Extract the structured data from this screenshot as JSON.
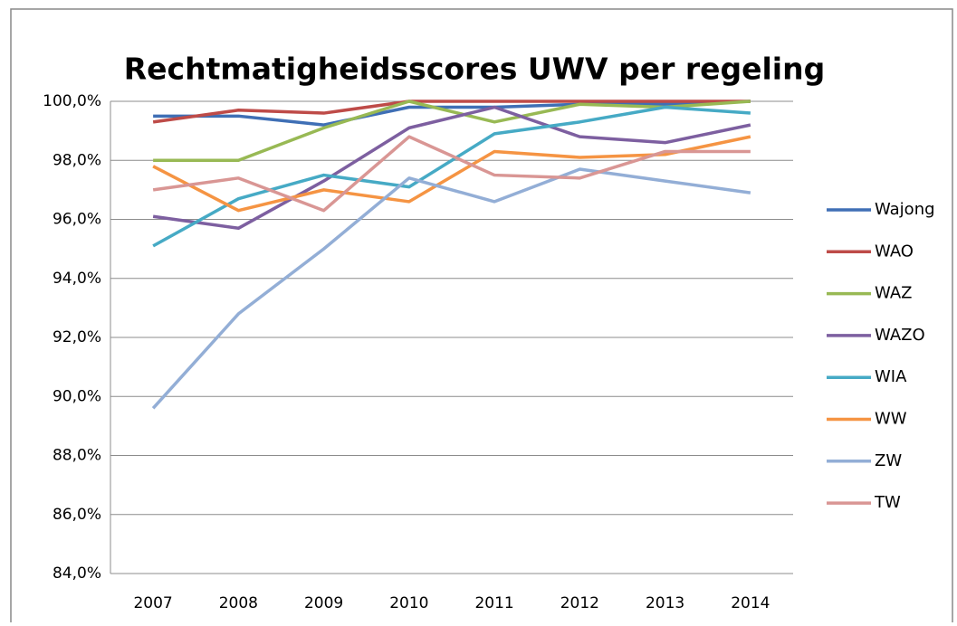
{
  "chart_data": {
    "type": "line",
    "title": "Rechtmatigheidsscores UWV per regeling",
    "categories": [
      "2007",
      "2008",
      "2009",
      "2010",
      "2011",
      "2012",
      "2013",
      "2014"
    ],
    "series": [
      {
        "name": "Wajong",
        "color": "#3f6fb5",
        "values": [
          99.5,
          99.5,
          99.2,
          99.8,
          99.8,
          99.9,
          99.9,
          100.0
        ]
      },
      {
        "name": "WAO",
        "color": "#be4b48",
        "values": [
          99.3,
          99.7,
          99.6,
          100.0,
          100.0,
          100.0,
          100.0,
          100.0
        ]
      },
      {
        "name": "WAZ",
        "color": "#98b954",
        "values": [
          98.0,
          98.0,
          99.1,
          100.0,
          99.3,
          99.9,
          99.8,
          100.0
        ]
      },
      {
        "name": "WAZO",
        "color": "#7d5fa0",
        "values": [
          96.1,
          95.7,
          97.3,
          99.1,
          99.8,
          98.8,
          98.6,
          99.2
        ]
      },
      {
        "name": "WIA",
        "color": "#46aac5",
        "values": [
          95.1,
          96.7,
          97.5,
          97.1,
          98.9,
          99.3,
          99.8,
          99.6
        ]
      },
      {
        "name": "WW",
        "color": "#f59443",
        "values": [
          97.8,
          96.3,
          97.0,
          96.6,
          98.3,
          98.1,
          98.2,
          98.8
        ]
      },
      {
        "name": "ZW",
        "color": "#93aed6",
        "values": [
          89.6,
          92.8,
          95.0,
          97.4,
          96.6,
          97.7,
          97.3,
          96.9
        ]
      },
      {
        "name": "TW",
        "color": "#d99694",
        "values": [
          97.0,
          97.4,
          96.3,
          98.8,
          97.5,
          97.4,
          98.3,
          98.3
        ]
      }
    ],
    "ylim": [
      84,
      100
    ],
    "yticks": [
      {
        "value": 84,
        "label": "84,0%"
      },
      {
        "value": 86,
        "label": "86,0%"
      },
      {
        "value": 88,
        "label": "88,0%"
      },
      {
        "value": 90,
        "label": "90,0%"
      },
      {
        "value": 92,
        "label": "92,0%"
      },
      {
        "value": 94,
        "label": "94,0%"
      },
      {
        "value": 96,
        "label": "96,0%"
      },
      {
        "value": 98,
        "label": "98,0%"
      },
      {
        "value": 100,
        "label": "100,0%"
      }
    ],
    "grid": true,
    "legend": "right"
  }
}
